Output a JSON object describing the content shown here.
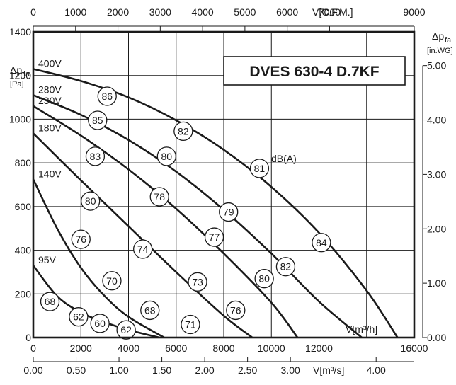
{
  "chart_data": {
    "type": "line",
    "title": "DVES 630-4 D.7KF",
    "x_axis": {
      "label": "V[m³/h]",
      "lim": [
        0,
        16000
      ],
      "ticks": [
        "0",
        "2000",
        "4000",
        "6000",
        "8000",
        "10000",
        "12000",
        "16000"
      ],
      "tick_values": [
        0,
        2000,
        4000,
        6000,
        8000,
        10000,
        12000,
        16000
      ]
    },
    "x_axis_top": {
      "label": "V[C.F.M.]",
      "lim": [
        0,
        9000
      ],
      "ticks": [
        "0",
        "1000",
        "2000",
        "3000",
        "4000",
        "5000",
        "6000",
        "7000",
        "9000"
      ],
      "tick_values": [
        0,
        1000,
        2000,
        3000,
        4000,
        5000,
        6000,
        7000,
        9000
      ]
    },
    "x_axis_bottom2": {
      "label": "V[m³/s]",
      "lim": [
        0,
        4.4444
      ],
      "ticks": [
        "0.00",
        "0.50",
        "1.00",
        "1.50",
        "2.00",
        "2.50",
        "3.00",
        "4.00"
      ],
      "tick_values": [
        0,
        0.5,
        1.0,
        1.5,
        2.0,
        2.5,
        3.0,
        4.0
      ]
    },
    "y_axis": {
      "label": "Δp",
      "label_sub": "fa",
      "unit": "[Pa]",
      "lim": [
        0,
        1400
      ],
      "ticks": [
        "0",
        "200",
        "400",
        "600",
        "800",
        "1000",
        "1200",
        "1400"
      ],
      "tick_values": [
        0,
        200,
        400,
        600,
        800,
        1000,
        1200,
        1400
      ]
    },
    "y_axis_right": {
      "label": "Δp",
      "label_sub": "fa",
      "unit": "[in.WG]",
      "lim": [
        0,
        5.62
      ],
      "ticks": [
        "0.00",
        "1.00",
        "2.00",
        "3.00",
        "4.00",
        "5.00"
      ],
      "tick_values": [
        0,
        1,
        2,
        3,
        4,
        5
      ]
    },
    "grid": true,
    "series": [
      {
        "name": "400V",
        "x": [
          0,
          2000,
          4000,
          6000,
          8000,
          10000,
          12000,
          14000,
          15300
        ],
        "y": [
          1230,
          1175,
          1100,
          995,
          860,
          690,
          480,
          215,
          0
        ]
      },
      {
        "name": "280V",
        "x": [
          0,
          2000,
          4000,
          6000,
          8000,
          10000,
          12000,
          13800
        ],
        "y": [
          1110,
          1020,
          905,
          760,
          585,
          385,
          165,
          0
        ]
      },
      {
        "name": "230V",
        "x": [
          0,
          2000,
          4000,
          6000,
          8000,
          10000,
          11100
        ],
        "y": [
          1060,
          925,
          770,
          590,
          385,
          160,
          0
        ]
      },
      {
        "name": "180V",
        "x": [
          0,
          2000,
          4000,
          6000,
          8000,
          9200
        ],
        "y": [
          935,
          720,
          510,
          300,
          100,
          0
        ]
      },
      {
        "name": "140V",
        "x": [
          0,
          1000,
          2000,
          3000,
          4000,
          5500
        ],
        "y": [
          725,
          500,
          320,
          190,
          95,
          0
        ]
      },
      {
        "name": "95V",
        "x": [
          0,
          1000,
          2000,
          3000,
          4000,
          5300
        ],
        "y": [
          330,
          190,
          115,
          70,
          35,
          0
        ]
      }
    ],
    "dB_unit_label": "dB(A)",
    "annotations": [
      {
        "text": "86",
        "x": 3100,
        "y": 1105
      },
      {
        "text": "82",
        "x": 6300,
        "y": 945
      },
      {
        "text": "81",
        "x": 9500,
        "y": 775
      },
      {
        "text": "84",
        "x": 12100,
        "y": 435
      },
      {
        "text": "85",
        "x": 2700,
        "y": 995
      },
      {
        "text": "80",
        "x": 5600,
        "y": 830
      },
      {
        "text": "79",
        "x": 8200,
        "y": 575
      },
      {
        "text": "82",
        "x": 10600,
        "y": 325
      },
      {
        "text": "83",
        "x": 2600,
        "y": 830
      },
      {
        "text": "78",
        "x": 5300,
        "y": 645
      },
      {
        "text": "77",
        "x": 7600,
        "y": 460
      },
      {
        "text": "80",
        "x": 9700,
        "y": 270
      },
      {
        "text": "80",
        "x": 2400,
        "y": 625
      },
      {
        "text": "74",
        "x": 4600,
        "y": 405
      },
      {
        "text": "73",
        "x": 6900,
        "y": 255
      },
      {
        "text": "76",
        "x": 8500,
        "y": 125
      },
      {
        "text": "76",
        "x": 2000,
        "y": 450
      },
      {
        "text": "70",
        "x": 3300,
        "y": 260
      },
      {
        "text": "68",
        "x": 4900,
        "y": 125
      },
      {
        "text": "71",
        "x": 6600,
        "y": 60
      },
      {
        "text": "68",
        "x": 700,
        "y": 165
      },
      {
        "text": "62",
        "x": 1900,
        "y": 95
      },
      {
        "text": "60",
        "x": 2800,
        "y": 65
      },
      {
        "text": "62",
        "x": 3900,
        "y": 35
      }
    ]
  }
}
